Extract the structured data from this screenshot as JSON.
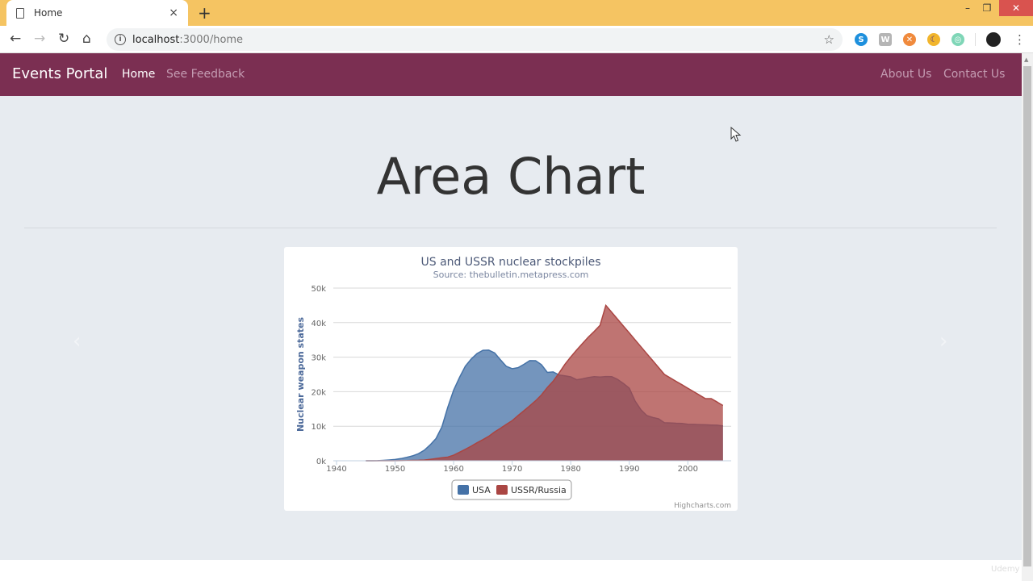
{
  "browser": {
    "tab_title": "Home",
    "tab_close": "×",
    "new_tab": "+",
    "url_host": "localhost",
    "url_path": ":3000/home",
    "window_controls": {
      "minimize": "–",
      "restore": "❐",
      "close": "✕"
    },
    "nav": {
      "back": "←",
      "forward": "→",
      "reload": "↻",
      "home": "⌂"
    },
    "bookmark_icon": "☆",
    "menu_icon": "⋮",
    "extensions": [
      {
        "name": "skype",
        "glyph": "S",
        "color": "#1e90dd"
      },
      {
        "name": "shield",
        "glyph": "W",
        "color": "#b5b5b5"
      },
      {
        "name": "orange-circle",
        "glyph": "✕",
        "color": "#f08a3c"
      },
      {
        "name": "moon",
        "glyph": "☾",
        "color": "#f2b52c"
      },
      {
        "name": "radar",
        "glyph": "◎",
        "color": "#7fd6b7"
      }
    ]
  },
  "navbar": {
    "brand": "Events Portal",
    "left_links": [
      {
        "label": "Home",
        "active": true
      },
      {
        "label": "See Feedback",
        "active": false
      }
    ],
    "right_links": [
      {
        "label": "About Us"
      },
      {
        "label": "Contact Us"
      }
    ],
    "bg_color": "#7b2f52"
  },
  "page": {
    "heading": "Area Chart",
    "carousel_prev": "‹",
    "carousel_next": "›",
    "watermark": "Udemy"
  },
  "chart_data": {
    "type": "area",
    "title": "US and USSR nuclear stockpiles",
    "subtitle": "Source:  thebulletin.metapress.com",
    "xlabel": "",
    "ylabel": "Nuclear weapon states",
    "xlim": [
      1940,
      2006
    ],
    "ylim": [
      0,
      50000
    ],
    "x_ticks": [
      "1940",
      "1950",
      "1960",
      "1970",
      "1980",
      "1990",
      "2000"
    ],
    "y_ticks": [
      "0k",
      "10k",
      "20k",
      "30k",
      "40k",
      "50k"
    ],
    "grid": true,
    "legend_position": "bottom",
    "credits": "Highcharts.com",
    "x": [
      1945,
      1946,
      1947,
      1948,
      1949,
      1950,
      1951,
      1952,
      1953,
      1954,
      1955,
      1956,
      1957,
      1958,
      1959,
      1960,
      1961,
      1962,
      1963,
      1964,
      1965,
      1966,
      1967,
      1968,
      1969,
      1970,
      1971,
      1972,
      1973,
      1974,
      1975,
      1976,
      1977,
      1978,
      1979,
      1980,
      1981,
      1982,
      1983,
      1984,
      1985,
      1986,
      1987,
      1988,
      1989,
      1990,
      1991,
      1992,
      1993,
      1994,
      1995,
      1996,
      1997,
      1998,
      1999,
      2000,
      2001,
      2002,
      2003,
      2004,
      2005,
      2006
    ],
    "series": [
      {
        "name": "USA",
        "color": "#4572a7",
        "values": [
          6,
          11,
          32,
          110,
          235,
          369,
          640,
          1005,
          1436,
          2063,
          3057,
          4618,
          6444,
          9822,
          15468,
          20434,
          24126,
          27387,
          29459,
          31056,
          31982,
          32040,
          31233,
          29224,
          27342,
          26662,
          26956,
          27912,
          28999,
          28965,
          27826,
          25579,
          25722,
          24826,
          24605,
          24304,
          23464,
          23708,
          24099,
          24357,
          24237,
          24401,
          24344,
          23586,
          22380,
          21004,
          17287,
          14747,
          13076,
          12555,
          12144,
          11009,
          10950,
          10871,
          10824,
          10577,
          10527,
          10475,
          10421,
          10358,
          10295,
          10104
        ]
      },
      {
        "name": "USSR/Russia",
        "color": "#aa4643",
        "values": [
          0,
          0,
          0,
          0,
          0,
          5,
          25,
          50,
          120,
          150,
          200,
          426,
          660,
          869,
          1060,
          1605,
          2471,
          3322,
          4238,
          5221,
          6129,
          7089,
          8339,
          9399,
          10538,
          11643,
          13092,
          14478,
          15915,
          17385,
          19055,
          21205,
          23044,
          25393,
          27935,
          30062,
          32049,
          33952,
          35804,
          37431,
          39197,
          45000,
          43000,
          41000,
          39000,
          37000,
          35000,
          33000,
          31000,
          29000,
          27000,
          25000,
          24000,
          23000,
          22000,
          21000,
          20000,
          19000,
          18000,
          18000,
          17000,
          16000
        ]
      }
    ]
  }
}
